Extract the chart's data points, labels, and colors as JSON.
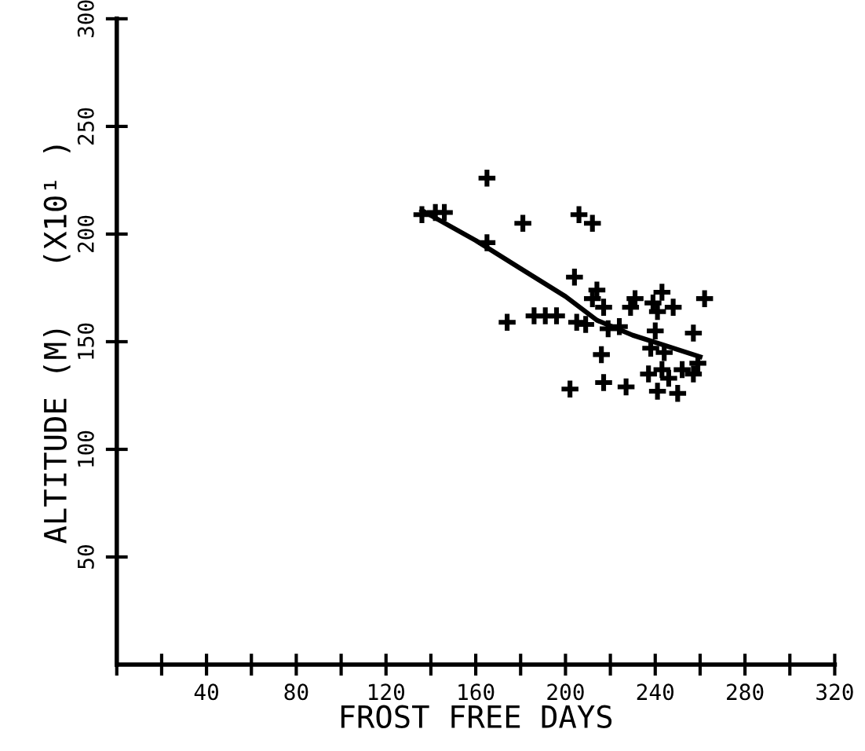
{
  "chart_data": {
    "type": "scatter",
    "xlabel": "FROST FREE DAYS",
    "ylabel": "ALTITUDE (M)   (X10¹ )",
    "xlim": [
      0,
      320
    ],
    "ylim": [
      0,
      300
    ],
    "xticks": [
      {
        "value": 0,
        "label": null
      },
      {
        "value": 20,
        "label": null
      },
      40,
      {
        "value": 60,
        "label": null
      },
      80,
      {
        "value": 100,
        "label": null
      },
      120,
      {
        "value": 140,
        "label": null
      },
      160,
      {
        "value": 180,
        "label": null
      },
      200,
      {
        "value": 220,
        "label": null
      },
      240,
      {
        "value": 260,
        "label": null
      },
      280,
      {
        "value": 300,
        "label": null
      },
      320
    ],
    "yticks": [
      50,
      100,
      150,
      200,
      250,
      300
    ],
    "grid": false,
    "marker": "cross",
    "series": [
      {
        "color": "#000000",
        "x": [
          136,
          146,
          142,
          165,
          165,
          181,
          206,
          212,
          204,
          214,
          212,
          174,
          186,
          191,
          196,
          205,
          209,
          217,
          219,
          224,
          216,
          202,
          217,
          227,
          229,
          231,
          239,
          243,
          241,
          248,
          262,
          240,
          257,
          238,
          244,
          237,
          241,
          250,
          252,
          257,
          259,
          246,
          243
        ],
        "values": [
          209,
          210,
          210,
          226,
          196,
          205,
          209,
          205,
          180,
          174,
          170,
          159,
          162,
          162,
          162,
          159,
          158,
          166,
          156,
          157,
          144,
          128,
          131,
          129,
          166,
          170,
          168,
          173,
          164,
          166,
          170,
          155,
          154,
          147,
          145,
          135,
          127,
          126,
          137,
          135,
          140,
          133,
          137
        ]
      },
      {
        "type": "line",
        "color": "#000000",
        "marker": "none",
        "x": [
          136,
          160,
          180,
          200,
          214,
          230,
          245,
          260
        ],
        "values": [
          211,
          197,
          184,
          171,
          160,
          153,
          148,
          143
        ]
      }
    ]
  }
}
